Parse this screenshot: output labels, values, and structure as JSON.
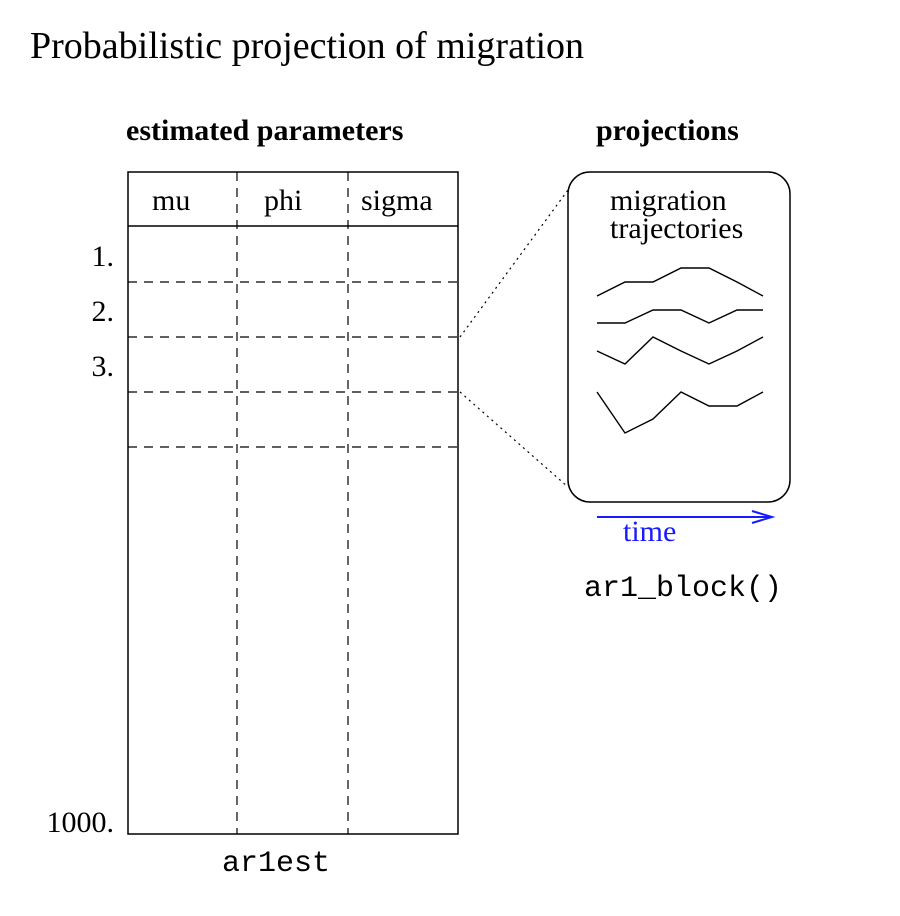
{
  "title": "Probabilistic projection of migration",
  "left_panel": {
    "heading": "estimated parameters",
    "columns": [
      "mu",
      "phi",
      "sigma"
    ],
    "row_labels": [
      "1.",
      "2.",
      "3.",
      "1000."
    ],
    "caption": "ar1est"
  },
  "right_panel": {
    "heading": "projections",
    "box_label_line1": "migration",
    "box_label_line2": "trajectories",
    "axis_label": "time",
    "caption": "ar1_block()"
  },
  "colors": {
    "time_arrow": "#1a1aff"
  }
}
